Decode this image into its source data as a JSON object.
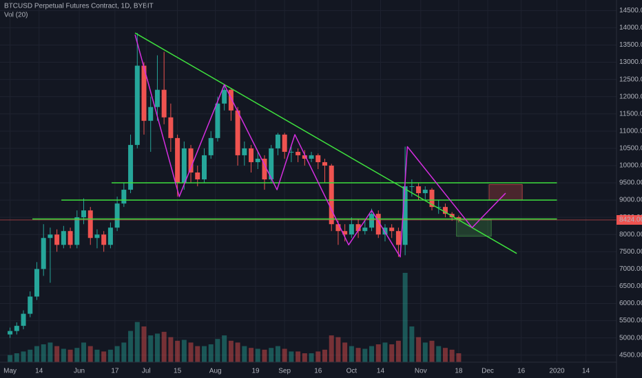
{
  "chart_data": {
    "type": "candlestick",
    "title": "BTCUSD Perpetual Futures Contract, 1D, BYBIT",
    "subtitle": "Vol (20)",
    "up_color": "#26a69a",
    "down_color": "#ef5350",
    "x": [
      0,
      3,
      6,
      9,
      12,
      15,
      18,
      21,
      24,
      27,
      30,
      33,
      36,
      39,
      42,
      45,
      48,
      51,
      54,
      57,
      60,
      63,
      66,
      69,
      72,
      75,
      78,
      81,
      84,
      87,
      90,
      93,
      96,
      99,
      102,
      105,
      108,
      111,
      114,
      117,
      120,
      123,
      126,
      129,
      132,
      135,
      138,
      141,
      144,
      147,
      150,
      153,
      156,
      159,
      162,
      165,
      168,
      171,
      174,
      177,
      180,
      183,
      186,
      189,
      192,
      195,
      198,
      201
    ],
    "ohlc": [
      [
        5100,
        5300,
        5000,
        5200
      ],
      [
        5200,
        5450,
        5100,
        5350
      ],
      [
        5350,
        5800,
        5250,
        5700
      ],
      [
        5700,
        6350,
        5600,
        6200
      ],
      [
        6200,
        7200,
        6100,
        7000
      ],
      [
        7000,
        8300,
        6800,
        7900
      ],
      [
        7900,
        8200,
        6600,
        8000
      ],
      [
        8000,
        8150,
        7500,
        7700
      ],
      [
        7700,
        8250,
        7600,
        8100
      ],
      [
        8100,
        8200,
        7600,
        7700
      ],
      [
        7700,
        8700,
        7600,
        8500
      ],
      [
        8500,
        9050,
        8300,
        8700
      ],
      [
        8700,
        8800,
        7700,
        7900
      ],
      [
        7900,
        8150,
        7600,
        8000
      ],
      [
        8000,
        8100,
        7500,
        7700
      ],
      [
        7700,
        8350,
        7600,
        8200
      ],
      [
        8200,
        9100,
        8100,
        8900
      ],
      [
        8900,
        9500,
        8800,
        9300
      ],
      [
        9300,
        10900,
        9200,
        10600
      ],
      [
        10600,
        13850,
        10500,
        12900
      ],
      [
        12900,
        13000,
        10900,
        11300
      ],
      [
        11300,
        12000,
        10400,
        11700
      ],
      [
        11700,
        13200,
        11300,
        12200
      ],
      [
        12200,
        13300,
        11200,
        11400
      ],
      [
        11400,
        11800,
        10400,
        10800
      ],
      [
        10800,
        10900,
        9100,
        9500
      ],
      [
        9500,
        10700,
        9300,
        10500
      ],
      [
        10500,
        10600,
        9500,
        9800
      ],
      [
        9800,
        10000,
        9400,
        9600
      ],
      [
        9600,
        10500,
        9500,
        10300
      ],
      [
        10300,
        11000,
        10200,
        10800
      ],
      [
        10800,
        12000,
        10700,
        11800
      ],
      [
        11800,
        12350,
        11600,
        12200
      ],
      [
        12200,
        12250,
        11300,
        11600
      ],
      [
        11600,
        11700,
        10000,
        10300
      ],
      [
        10300,
        10700,
        10000,
        10500
      ],
      [
        10500,
        10600,
        9800,
        10100
      ],
      [
        10100,
        10400,
        9900,
        10200
      ],
      [
        10200,
        10300,
        9300,
        9600
      ],
      [
        9600,
        10600,
        9500,
        10500
      ],
      [
        10500,
        10950,
        10300,
        10900
      ],
      [
        10900,
        10950,
        10200,
        10400
      ],
      [
        10400,
        10600,
        10100,
        10400
      ],
      [
        10400,
        10500,
        10100,
        10300
      ],
      [
        10300,
        10450,
        10000,
        10200
      ],
      [
        10200,
        10400,
        10100,
        10300
      ],
      [
        10300,
        10350,
        9900,
        10100
      ],
      [
        10100,
        10200,
        9500,
        10000
      ],
      [
        10000,
        10050,
        8100,
        8300
      ],
      [
        8300,
        8400,
        7700,
        8100
      ],
      [
        8100,
        8300,
        7800,
        8000
      ],
      [
        8000,
        8500,
        7900,
        8300
      ],
      [
        8300,
        8450,
        7900,
        8100
      ],
      [
        8100,
        8400,
        8000,
        8200
      ],
      [
        8200,
        8750,
        8100,
        8600
      ],
      [
        8600,
        8700,
        7900,
        8000
      ],
      [
        8000,
        8300,
        7800,
        8200
      ],
      [
        8200,
        8300,
        7900,
        8100
      ],
      [
        8100,
        8200,
        7350,
        7700
      ],
      [
        7700,
        10550,
        7400,
        9400
      ],
      [
        9400,
        9600,
        9100,
        9400
      ],
      [
        9400,
        9500,
        9000,
        9200
      ],
      [
        9200,
        9400,
        9000,
        9300
      ],
      [
        9300,
        9350,
        8700,
        8800
      ],
      [
        8800,
        9000,
        8600,
        8800
      ],
      [
        8800,
        8900,
        8500,
        8600
      ],
      [
        8600,
        8650,
        8400,
        8500
      ],
      [
        8500,
        8550,
        8350,
        8424
      ]
    ],
    "volume": [
      8,
      10,
      12,
      14,
      18,
      20,
      22,
      18,
      15,
      14,
      16,
      22,
      18,
      14,
      12,
      14,
      18,
      22,
      35,
      45,
      40,
      30,
      32,
      34,
      28,
      24,
      25,
      22,
      18,
      18,
      20,
      26,
      30,
      24,
      22,
      18,
      16,
      15,
      14,
      16,
      18,
      15,
      12,
      12,
      10,
      10,
      12,
      14,
      30,
      28,
      22,
      18,
      16,
      15,
      18,
      20,
      22,
      20,
      24,
      100,
      40,
      28,
      22,
      24,
      18,
      16,
      14,
      10
    ],
    "vlim": [
      0,
      100
    ],
    "xlim": [
      -4.5,
      271.7
    ],
    "xticks": [
      {
        "value": 0,
        "label": "May"
      },
      {
        "value": 13,
        "label": "14"
      },
      {
        "value": 31,
        "label": "Jun"
      },
      {
        "value": 47,
        "label": "17"
      },
      {
        "value": 61,
        "label": "Jul"
      },
      {
        "value": 75,
        "label": "15"
      },
      {
        "value": 92,
        "label": "Aug"
      },
      {
        "value": 110,
        "label": "19"
      },
      {
        "value": 123,
        "label": "Sep"
      },
      {
        "value": 138,
        "label": "16"
      },
      {
        "value": 153,
        "label": "Oct"
      },
      {
        "value": 166,
        "label": "14"
      },
      {
        "value": 184,
        "label": "Nov"
      },
      {
        "value": 201,
        "label": "18"
      },
      {
        "value": 214,
        "label": "Dec"
      },
      {
        "value": 229,
        "label": "16"
      },
      {
        "value": 245,
        "label": "2020"
      },
      {
        "value": 258,
        "label": "14"
      }
    ],
    "ylim": [
      4295,
      14806
    ],
    "yticks": [
      {
        "value": 4500,
        "label": "4500.00"
      },
      {
        "value": 5000,
        "label": "5000.00"
      },
      {
        "value": 5500,
        "label": "5500.00"
      },
      {
        "value": 6000,
        "label": "6000.00"
      },
      {
        "value": 6500,
        "label": "6500.00"
      },
      {
        "value": 7000,
        "label": "7000.00"
      },
      {
        "value": 7500,
        "label": "7500.00"
      },
      {
        "value": 8000,
        "label": "8000.00"
      },
      {
        "value": 8500,
        "label": "8500.00"
      },
      {
        "value": 9000,
        "label": "9000.00"
      },
      {
        "value": 9500,
        "label": "9500.00"
      },
      {
        "value": 10000,
        "label": "10000.00"
      },
      {
        "value": 10500,
        "label": "10500.00"
      },
      {
        "value": 11000,
        "label": "11000.00"
      },
      {
        "value": 11500,
        "label": "11500.00"
      },
      {
        "value": 12000,
        "label": "12000.00"
      },
      {
        "value": 12500,
        "label": "12500.00"
      },
      {
        "value": 13000,
        "label": "13000.00"
      },
      {
        "value": 13500,
        "label": "13500.00"
      },
      {
        "value": 14000,
        "label": "14000.00"
      },
      {
        "value": 14500,
        "label": "14500.00"
      }
    ],
    "last_price": {
      "value": 8424,
      "label": "8424.00"
    },
    "grid": true,
    "drawings": {
      "lines": [
        {
          "color": "#3ee03e",
          "x": [
            45.5,
            245
          ],
          "y": [
            9500,
            9500
          ]
        },
        {
          "color": "#3ee03e",
          "x": [
            23,
            245
          ],
          "y": [
            9000,
            9000
          ]
        },
        {
          "color": "#3ee03e",
          "x": [
            10,
            245
          ],
          "y": [
            8450,
            8450
          ]
        },
        {
          "color": "#3ee03e",
          "x": [
            56,
            227
          ],
          "y": [
            13850,
            7450
          ]
        },
        {
          "color": "#d52ee0",
          "x": [
            56,
            75.8,
            96,
            119.6,
            127.6,
            151.7,
            162,
            174.8,
            178,
            207,
            222
          ],
          "y": [
            13800,
            9100,
            12350,
            9300,
            10900,
            7700,
            8700,
            7350,
            10550,
            8200,
            9200
          ]
        }
      ],
      "boxes": [
        {
          "color": "#ef5350",
          "x": [
            214.6,
            229.5
          ],
          "y": [
            9000,
            9450
          ]
        },
        {
          "color": "#4caf50",
          "x": [
            200,
            215.6
          ],
          "y": [
            7950,
            8424
          ]
        }
      ]
    }
  }
}
